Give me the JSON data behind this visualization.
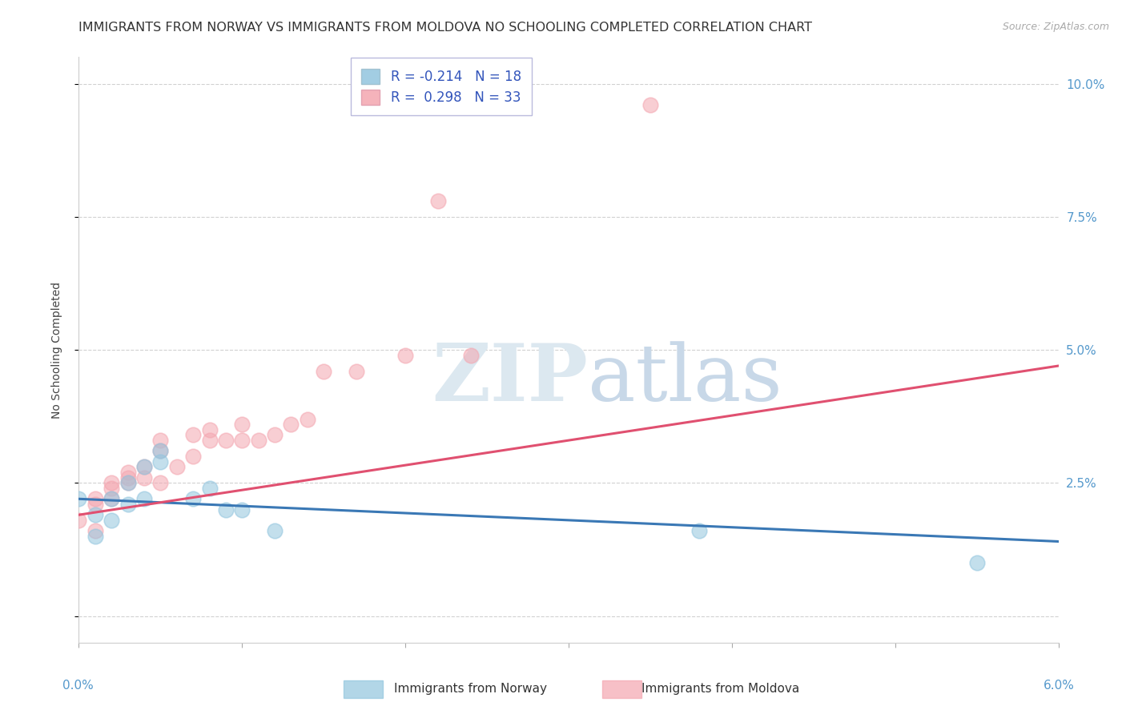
{
  "title": "IMMIGRANTS FROM NORWAY VS IMMIGRANTS FROM MOLDOVA NO SCHOOLING COMPLETED CORRELATION CHART",
  "source": "Source: ZipAtlas.com",
  "ylabel": "No Schooling Completed",
  "ytick_values": [
    0,
    0.025,
    0.05,
    0.075,
    0.1
  ],
  "ytick_labels_right": [
    "",
    "2.5%",
    "5.0%",
    "7.5%",
    "10.0%"
  ],
  "xlim": [
    0,
    0.06
  ],
  "ylim": [
    -0.005,
    0.105
  ],
  "legend_r_norway": "-0.214",
  "legend_n_norway": "18",
  "legend_r_moldova": "0.298",
  "legend_n_moldova": "33",
  "color_norway": "#92c5de",
  "color_moldova": "#f4a6b0",
  "norway_x": [
    0.0,
    0.001,
    0.001,
    0.002,
    0.002,
    0.003,
    0.003,
    0.004,
    0.004,
    0.005,
    0.005,
    0.007,
    0.008,
    0.009,
    0.01,
    0.012,
    0.038,
    0.055
  ],
  "norway_y": [
    0.022,
    0.019,
    0.015,
    0.022,
    0.018,
    0.025,
    0.021,
    0.028,
    0.022,
    0.031,
    0.029,
    0.022,
    0.024,
    0.02,
    0.02,
    0.016,
    0.016,
    0.01
  ],
  "moldova_x": [
    0.0,
    0.001,
    0.001,
    0.001,
    0.002,
    0.002,
    0.002,
    0.003,
    0.003,
    0.003,
    0.004,
    0.004,
    0.005,
    0.005,
    0.005,
    0.006,
    0.007,
    0.007,
    0.008,
    0.008,
    0.009,
    0.01,
    0.01,
    0.011,
    0.012,
    0.013,
    0.014,
    0.015,
    0.017,
    0.02,
    0.022,
    0.024,
    0.035
  ],
  "moldova_y": [
    0.018,
    0.022,
    0.021,
    0.016,
    0.025,
    0.024,
    0.022,
    0.026,
    0.025,
    0.027,
    0.028,
    0.026,
    0.033,
    0.025,
    0.031,
    0.028,
    0.034,
    0.03,
    0.033,
    0.035,
    0.033,
    0.036,
    0.033,
    0.033,
    0.034,
    0.036,
    0.037,
    0.046,
    0.046,
    0.049,
    0.078,
    0.049,
    0.096
  ],
  "norway_trendline_x": [
    0.0,
    0.06
  ],
  "norway_trendline_y": [
    0.022,
    0.014
  ],
  "moldova_trendline_x": [
    0.0,
    0.06
  ],
  "moldova_trendline_y": [
    0.019,
    0.047
  ],
  "background_color": "#ffffff",
  "grid_color": "#cccccc",
  "title_fontsize": 11.5,
  "source_fontsize": 9,
  "legend_fontsize": 12
}
